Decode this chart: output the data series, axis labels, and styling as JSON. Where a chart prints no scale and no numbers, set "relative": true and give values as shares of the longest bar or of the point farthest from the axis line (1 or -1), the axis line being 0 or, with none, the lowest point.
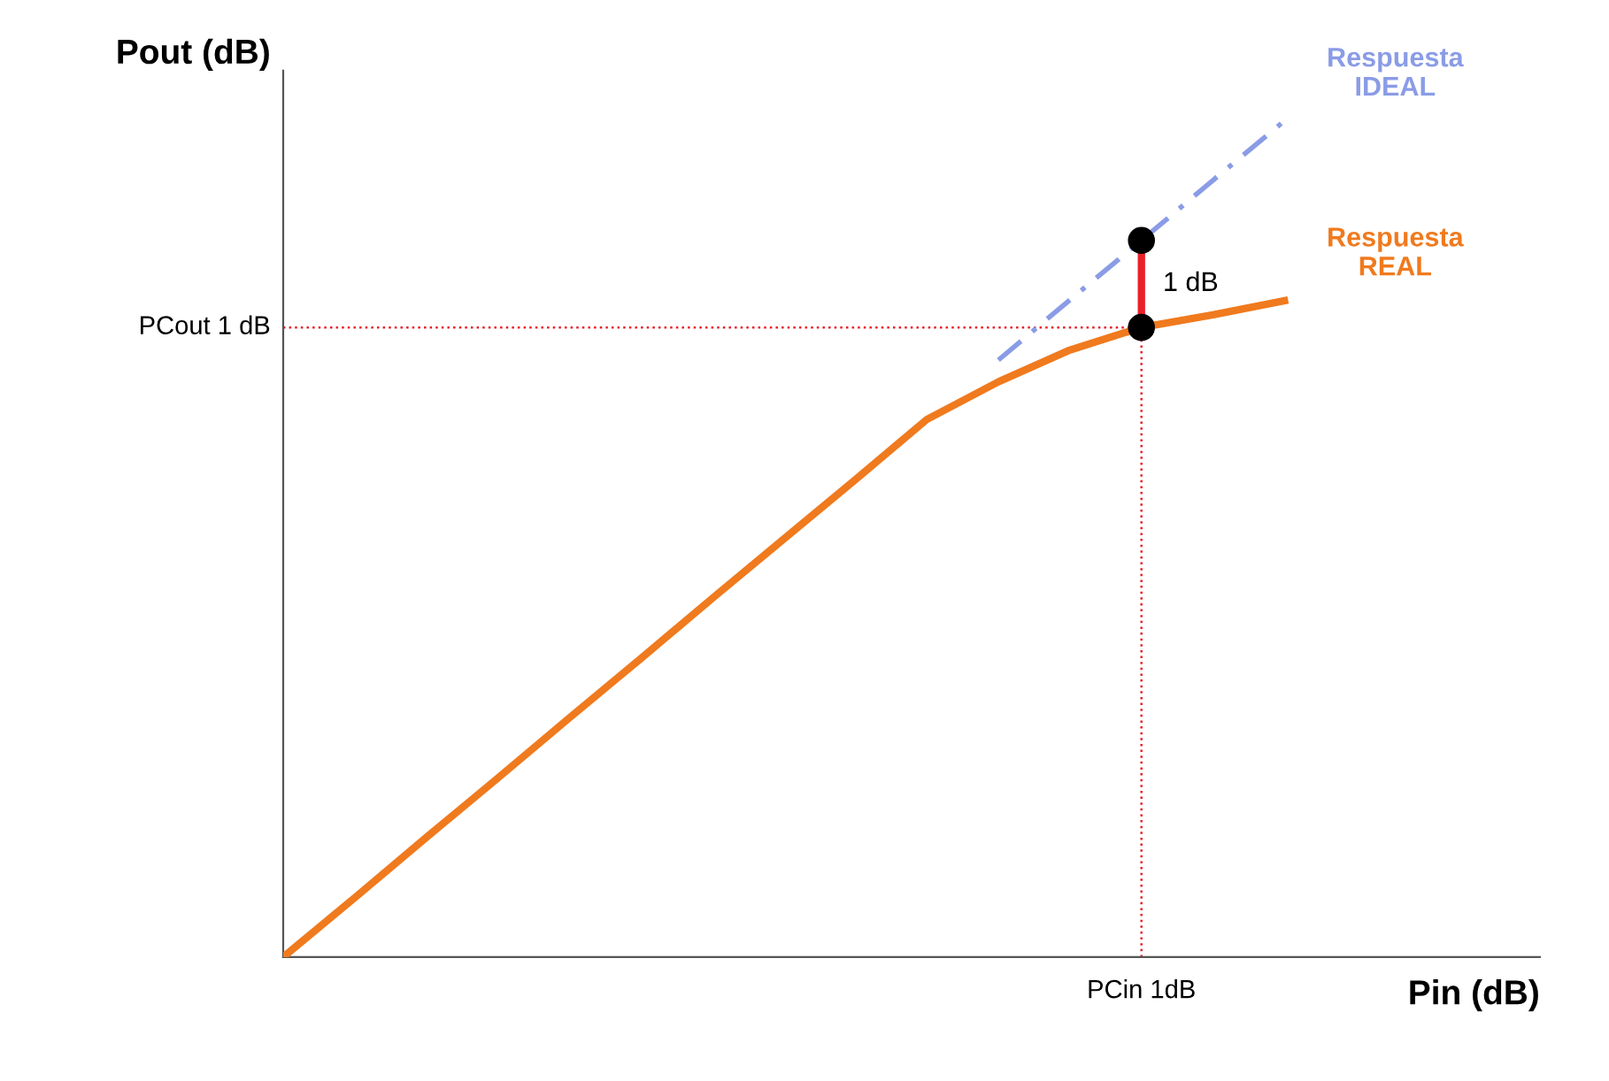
{
  "chart_data": {
    "type": "line",
    "relative": true,
    "xlabel": "Pin (dB)",
    "ylabel": "Pout (dB)",
    "categories": [
      null,
      null,
      null,
      null,
      null,
      null,
      null,
      null,
      null,
      null,
      null,
      null,
      null,
      null,
      null
    ],
    "series": [
      {
        "name": "Respuesta REAL",
        "color": "#f07a1e",
        "values": [
          0,
          0.071,
          0.143,
          0.214,
          0.286,
          0.357,
          0.429,
          0.5,
          0.571,
          0.643,
          0.688,
          0.726,
          0.753,
          0.768,
          0.785
        ],
        "line_style": "solid"
      },
      {
        "name": "Respuesta IDEAL",
        "color": "#8a9ce6",
        "values": [
          null,
          null,
          null,
          null,
          null,
          null,
          null,
          null,
          null,
          null,
          0.714,
          0.786,
          0.857,
          0.929,
          1.0
        ],
        "line_style": "dashed"
      }
    ],
    "ref_lines": [
      {
        "axis": "y",
        "value": 0.753,
        "label": "PCout 1 dB",
        "color": "#e8202a",
        "line_style": "dotted"
      },
      {
        "axis": "x",
        "value": "PCin 1dB",
        "color": "#e8202a",
        "line_style": "dotted"
      }
    ],
    "annotations": [
      "1 dB"
    ]
  }
}
